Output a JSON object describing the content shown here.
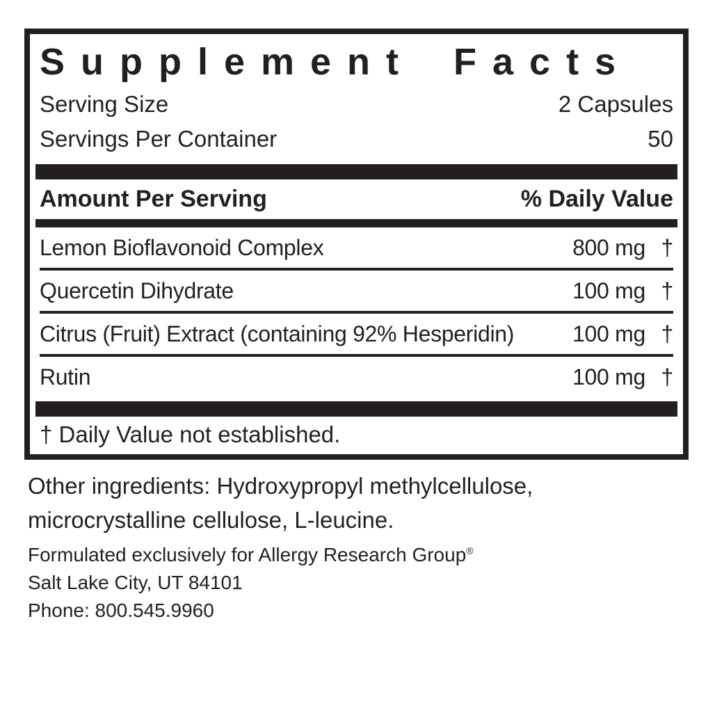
{
  "panel": {
    "title": "Supplement Facts",
    "serving_size": {
      "label": "Serving Size",
      "value": "2 Capsules"
    },
    "servings_per_container": {
      "label": "Servings Per Container",
      "value": "50"
    },
    "column_headers": {
      "amount_per_serving": "Amount Per Serving",
      "daily_value": "% Daily Value"
    },
    "ingredients": [
      {
        "name": "Lemon Bioflavonoid Complex",
        "amount": "800 mg",
        "daily_value": "†"
      },
      {
        "name": "Quercetin Dihydrate",
        "amount": "100 mg",
        "daily_value": "†"
      },
      {
        "name": "Citrus (Fruit) Extract (containing 92% Hesperidin)",
        "amount": "100 mg",
        "daily_value": "†"
      },
      {
        "name": "Rutin",
        "amount": "100 mg",
        "daily_value": "†"
      }
    ],
    "footnote": "† Daily Value not established."
  },
  "other_ingredients": "Other ingredients: Hydroxypropyl methylcellulose, microcrystalline cellulose, L-leucine.",
  "distributor": {
    "formulated_for": "Formulated exclusively for Allergy Research Group",
    "registered_mark": "®",
    "address": "Salt Lake City, UT 84101",
    "phone": "Phone: 800.545.9960"
  },
  "colors": {
    "text": "#231f20",
    "background": "#ffffff"
  }
}
